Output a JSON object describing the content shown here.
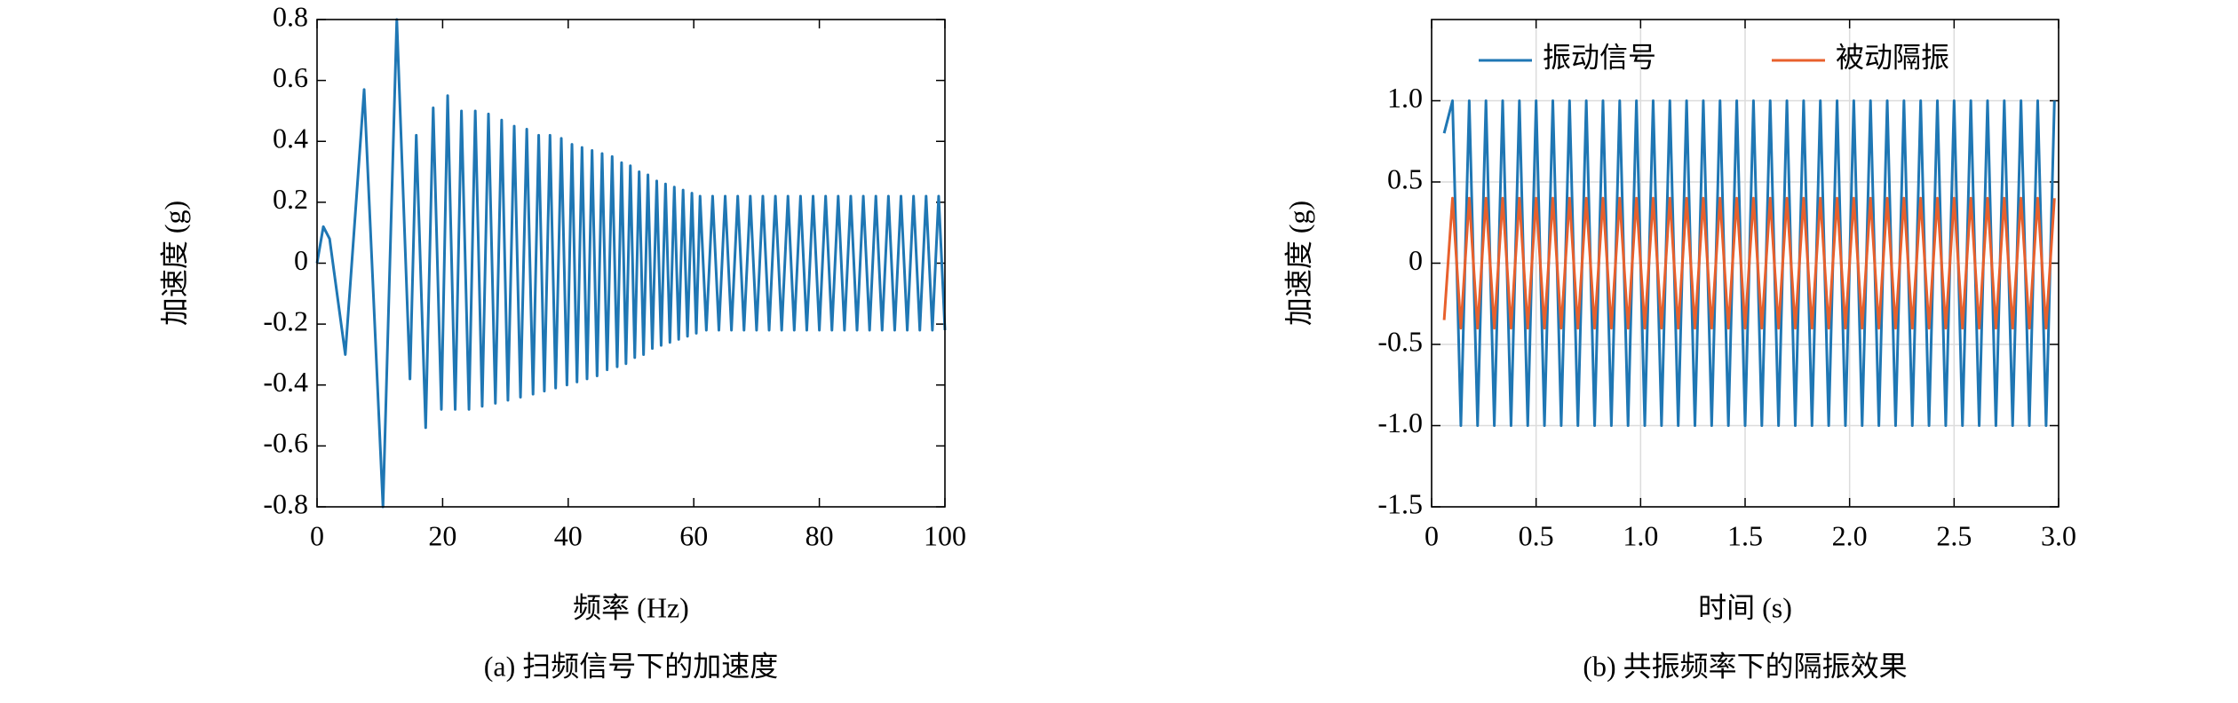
{
  "chart_data": [
    {
      "type": "line",
      "caption": "(a) 扫频信号下的加速度",
      "xlabel": "频率 (Hz)",
      "ylabel": "加速度 (g)",
      "x": [
        0,
        1,
        2,
        4.5,
        7.5,
        10.5,
        12.7,
        14.8,
        15.8,
        17.3,
        18.5,
        19.8,
        20.8,
        22,
        23,
        24.2,
        25.2,
        26.3,
        27.3,
        28.4,
        29.4,
        30.4,
        31.4,
        32.4,
        33.4,
        34.4,
        35.3,
        36.2,
        37.1,
        38,
        38.9,
        39.8,
        40.6,
        41.4,
        42.2,
        43,
        43.8,
        44.6,
        45.4,
        46.2,
        47,
        47.8,
        48.5,
        49.2,
        49.9,
        50.6,
        51.3,
        52,
        52.7,
        53.4,
        54.1,
        54.8,
        55.5,
        56.2,
        56.9,
        57.6,
        58.3,
        59,
        59.7,
        60.4,
        61,
        62,
        63,
        64,
        65,
        66,
        67,
        68,
        69,
        70,
        71,
        72,
        73,
        74,
        75,
        76,
        77,
        78,
        79,
        80,
        81,
        82,
        83,
        84,
        85,
        86,
        87,
        88,
        89,
        90,
        91,
        92,
        93,
        94,
        95,
        96,
        97,
        98,
        99,
        100
      ],
      "series": [
        {
          "color": "#1f77b4",
          "values": [
            0,
            0.12,
            0.08,
            -0.3,
            0.57,
            -0.8,
            0.8,
            -0.38,
            0.42,
            -0.54,
            0.51,
            -0.48,
            0.55,
            -0.48,
            0.5,
            -0.48,
            0.5,
            -0.47,
            0.49,
            -0.46,
            0.47,
            -0.45,
            0.45,
            -0.44,
            0.44,
            -0.43,
            0.42,
            -0.42,
            0.42,
            -0.41,
            0.41,
            -0.4,
            0.39,
            -0.39,
            0.38,
            -0.38,
            0.37,
            -0.37,
            0.36,
            -0.35,
            0.35,
            -0.34,
            0.33,
            -0.33,
            0.32,
            -0.31,
            0.3,
            -0.3,
            0.29,
            -0.28,
            0.27,
            -0.27,
            0.26,
            -0.26,
            0.25,
            -0.25,
            0.24,
            -0.24,
            0.23,
            -0.23,
            0.22,
            -0.22,
            0.22,
            -0.22,
            0.22,
            -0.22,
            0.22,
            -0.22,
            0.22,
            -0.22,
            0.22,
            -0.22,
            0.22,
            -0.22,
            0.22,
            -0.22,
            0.22,
            -0.22,
            0.22,
            -0.22,
            0.22,
            -0.22,
            0.22,
            -0.22,
            0.22,
            -0.22,
            0.22,
            -0.22,
            0.22,
            -0.22,
            0.22,
            -0.22,
            0.22,
            -0.22,
            0.22,
            -0.22,
            0.22,
            -0.22,
            0.22,
            -0.22
          ]
        }
      ],
      "xlim": [
        0,
        100
      ],
      "xticks": [
        0,
        20,
        40,
        60,
        80,
        100
      ],
      "ylim": [
        -0.8,
        0.8
      ],
      "yticks": [
        0.8,
        0.6,
        0.4,
        0.2,
        0,
        -0.2,
        -0.4,
        -0.6,
        -0.8
      ],
      "grid": false
    },
    {
      "type": "line",
      "caption": "(b) 共振频率下的隔振效果",
      "xlabel": "时间 (s)",
      "ylabel": "加速度 (g)",
      "x": [
        0.06,
        0.1,
        0.14,
        0.18,
        0.22,
        0.26,
        0.3,
        0.34,
        0.38,
        0.42,
        0.46,
        0.5,
        0.54,
        0.58,
        0.62,
        0.66,
        0.7,
        0.74,
        0.78,
        0.82,
        0.86,
        0.9,
        0.94,
        0.98,
        1.02,
        1.06,
        1.1,
        1.14,
        1.18,
        1.22,
        1.26,
        1.3,
        1.34,
        1.38,
        1.42,
        1.46,
        1.5,
        1.54,
        1.58,
        1.62,
        1.66,
        1.7,
        1.74,
        1.78,
        1.82,
        1.86,
        1.9,
        1.94,
        1.98,
        2.02,
        2.06,
        2.1,
        2.14,
        2.18,
        2.22,
        2.26,
        2.3,
        2.34,
        2.38,
        2.42,
        2.46,
        2.5,
        2.54,
        2.58,
        2.62,
        2.66,
        2.7,
        2.74,
        2.78,
        2.82,
        2.86,
        2.9,
        2.94,
        2.98
      ],
      "series": [
        {
          "name": "振动信号",
          "color": "#1f77b4",
          "values": [
            0.8,
            1,
            -1,
            1,
            -1,
            1,
            -1,
            1,
            -1,
            1,
            -1,
            1,
            -1,
            1,
            -1,
            1,
            -1,
            1,
            -1,
            1,
            -1,
            1,
            -1,
            1,
            -1,
            1,
            -1,
            1,
            -1,
            1,
            -1,
            1,
            -1,
            1,
            -1,
            1,
            -1,
            1,
            -1,
            1,
            -1,
            1,
            -1,
            1,
            -1,
            1,
            -1,
            1,
            -1,
            1,
            -1,
            1,
            -1,
            1,
            -1,
            1,
            -1,
            1,
            -1,
            1,
            -1,
            1,
            -1,
            1,
            -1,
            1,
            -1,
            1,
            -1,
            1,
            -1,
            1,
            -1,
            1
          ]
        },
        {
          "name": "被动隔振",
          "color": "#e8602c",
          "values": [
            -0.35,
            0.4,
            -0.4,
            0.4,
            -0.4,
            0.4,
            -0.4,
            0.4,
            -0.4,
            0.4,
            -0.4,
            0.4,
            -0.4,
            0.4,
            -0.4,
            0.4,
            -0.4,
            0.4,
            -0.4,
            0.4,
            -0.4,
            0.4,
            -0.4,
            0.4,
            -0.4,
            0.4,
            -0.4,
            0.4,
            -0.4,
            0.4,
            -0.4,
            0.4,
            -0.4,
            0.4,
            -0.4,
            0.4,
            -0.4,
            0.4,
            -0.4,
            0.4,
            -0.4,
            0.4,
            -0.4,
            0.4,
            -0.4,
            0.4,
            -0.4,
            0.4,
            -0.4,
            0.4,
            -0.4,
            0.4,
            -0.4,
            0.4,
            -0.4,
            0.4,
            -0.4,
            0.4,
            -0.4,
            0.4,
            -0.4,
            0.4,
            -0.4,
            0.4,
            -0.4,
            0.4,
            -0.4,
            0.4,
            -0.4,
            0.4,
            -0.4,
            0.4,
            -0.4,
            0.4
          ]
        }
      ],
      "xlim": [
        0,
        3
      ],
      "xticks": [
        0,
        0.5,
        {
          "value": 1,
          "label": "1.0"
        },
        1.5,
        {
          "value": 2,
          "label": "2.0"
        },
        2.5,
        {
          "value": 3,
          "label": "3.0"
        }
      ],
      "ylim": [
        -1.5,
        1.5
      ],
      "yticks": [
        {
          "value": 1,
          "label": "1.0"
        },
        0.5,
        0,
        -0.5,
        {
          "value": -1,
          "label": "-1.0"
        },
        -1.5
      ],
      "grid": true,
      "legend": "upper center"
    }
  ]
}
